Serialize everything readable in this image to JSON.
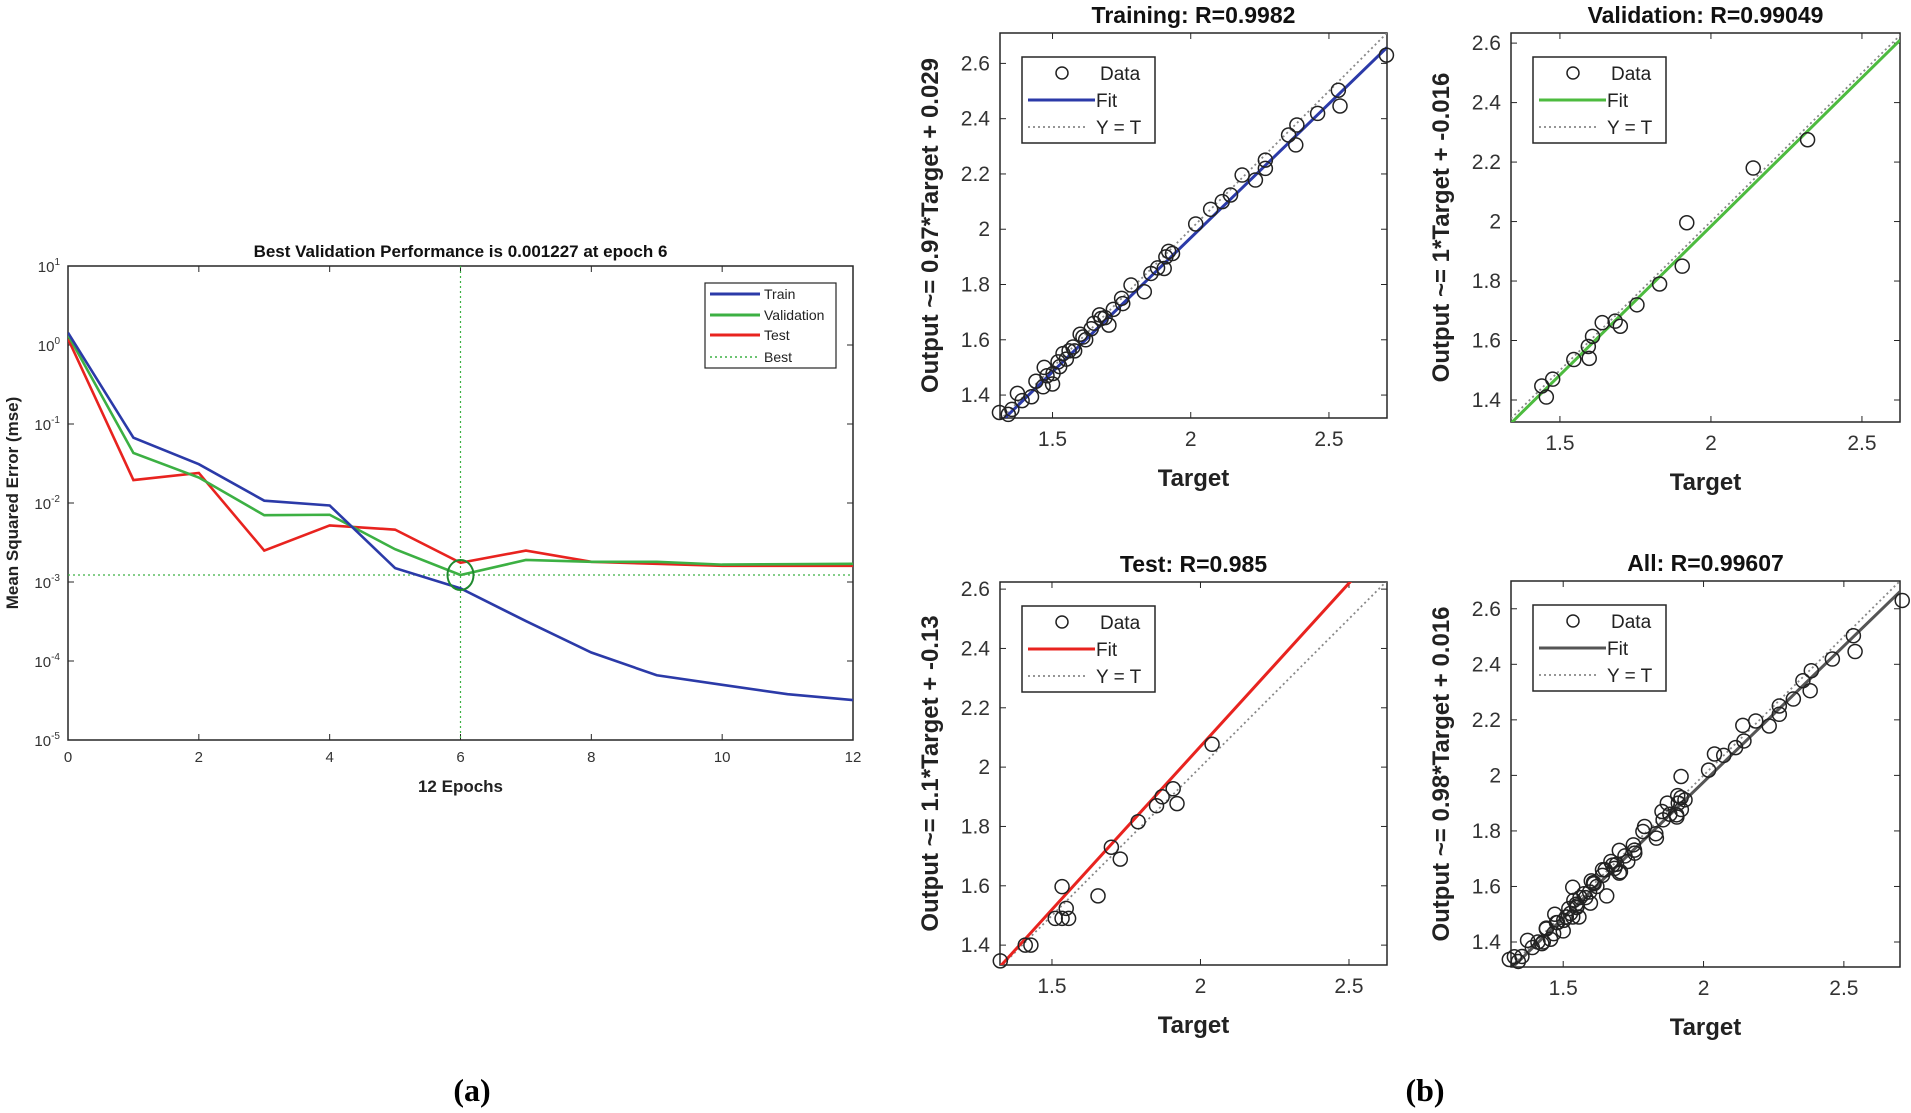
{
  "figure_labels": {
    "a": "(a)",
    "b": "(b)"
  },
  "chart_data": [
    {
      "type": "line",
      "title": "Best Validation Performance is 0.001227 at epoch 6",
      "xlabel": "12 Epochs",
      "ylabel": "Mean Squared Error  (mse)",
      "xlim": [
        0,
        12
      ],
      "ylim": [
        1e-05,
        10
      ],
      "yscale": "log",
      "xticks": [
        0,
        2,
        4,
        6,
        8,
        10,
        12
      ],
      "yticks": [
        1e-05,
        0.0001,
        0.001,
        0.01,
        0.1,
        1,
        10
      ],
      "ytick_labels": [
        "10^-5",
        "10^-4",
        "10^-3",
        "10^-2",
        "10^-1",
        "10^0",
        "10^1"
      ],
      "legend": "top-right",
      "x": [
        0,
        1,
        2,
        3,
        4,
        5,
        6,
        7,
        8,
        9,
        10,
        11,
        12
      ],
      "series": [
        {
          "name": "Train",
          "color": "#2b3aa8",
          "values": [
            1.43,
            0.067,
            0.031,
            0.0107,
            0.0093,
            0.0015,
            0.00083,
            0.00032,
            0.000128,
            6.6e-05,
            5e-05,
            3.8e-05,
            3.2e-05
          ]
        },
        {
          "name": "Validation",
          "color": "#3cb043",
          "values": [
            1.34,
            0.043,
            0.021,
            0.007,
            0.0071,
            0.0026,
            0.001227,
            0.0019,
            0.0018,
            0.0018,
            0.00166,
            0.00168,
            0.0017
          ]
        },
        {
          "name": "Test",
          "color": "#e8231f",
          "values": [
            1.2,
            0.0195,
            0.024,
            0.0025,
            0.0052,
            0.0046,
            0.00175,
            0.0025,
            0.0018,
            0.0017,
            0.0016,
            0.0016,
            0.0016
          ]
        }
      ],
      "best": {
        "name": "Best",
        "epoch": 6,
        "value": 0.001227,
        "color": "#3cb043"
      }
    },
    {
      "type": "scatter",
      "title": "Training: R=0.9982",
      "xlabel": "Target",
      "ylabel": "Output ~= 0.97*Target + 0.029",
      "xlim": [
        1.31,
        2.71
      ],
      "ylim": [
        1.317,
        2.71
      ],
      "xticks": [
        1.5,
        2,
        2.5
      ],
      "yticks": [
        1.4,
        1.6,
        1.8,
        2,
        2.2,
        2.4,
        2.6
      ],
      "legend": {
        "position": "top-left",
        "entries": [
          "Data",
          "Fit",
          "Y = T"
        ]
      },
      "fit": {
        "slope": 0.97,
        "intercept": 0.029,
        "color": "#2b3aa8"
      },
      "points": [
        [
          1.308,
          1.337
        ],
        [
          1.353,
          1.348
        ],
        [
          1.34,
          1.33
        ],
        [
          1.373,
          1.406
        ],
        [
          1.39,
          1.38
        ],
        [
          1.424,
          1.394
        ],
        [
          1.44,
          1.45
        ],
        [
          1.466,
          1.43
        ],
        [
          1.48,
          1.47
        ],
        [
          1.47,
          1.5
        ],
        [
          1.502,
          1.478
        ],
        [
          1.5,
          1.44
        ],
        [
          1.52,
          1.52
        ],
        [
          1.526,
          1.503
        ],
        [
          1.538,
          1.55
        ],
        [
          1.55,
          1.53
        ],
        [
          1.56,
          1.56
        ],
        [
          1.574,
          1.574
        ],
        [
          1.58,
          1.56
        ],
        [
          1.6,
          1.62
        ],
        [
          1.61,
          1.61
        ],
        [
          1.62,
          1.6
        ],
        [
          1.64,
          1.64
        ],
        [
          1.65,
          1.66
        ],
        [
          1.67,
          1.69
        ],
        [
          1.676,
          1.677
        ],
        [
          1.69,
          1.68
        ],
        [
          1.704,
          1.653
        ],
        [
          1.72,
          1.71
        ],
        [
          1.75,
          1.75
        ],
        [
          1.754,
          1.731
        ],
        [
          1.784,
          1.798
        ],
        [
          1.832,
          1.774
        ],
        [
          1.856,
          1.84
        ],
        [
          1.88,
          1.86
        ],
        [
          1.904,
          1.858
        ],
        [
          1.91,
          1.9
        ],
        [
          1.92,
          1.92
        ],
        [
          1.934,
          1.912
        ],
        [
          2.018,
          2.019
        ],
        [
          2.072,
          2.072
        ],
        [
          2.114,
          2.1
        ],
        [
          2.144,
          2.124
        ],
        [
          2.186,
          2.196
        ],
        [
          2.234,
          2.178
        ],
        [
          2.27,
          2.25
        ],
        [
          2.27,
          2.22
        ],
        [
          2.354,
          2.341
        ],
        [
          2.38,
          2.305
        ],
        [
          2.384,
          2.377
        ],
        [
          2.459,
          2.419
        ],
        [
          2.534,
          2.503
        ],
        [
          2.54,
          2.446
        ],
        [
          2.708,
          2.63
        ]
      ]
    },
    {
      "type": "scatter",
      "title": "Validation: R=0.99049",
      "xlabel": "Target",
      "ylabel": "Output ~= 1*Target + -0.016",
      "xlim": [
        1.338,
        2.626
      ],
      "ylim": [
        1.326,
        2.634
      ],
      "xticks": [
        1.5,
        2,
        2.5
      ],
      "yticks": [
        1.4,
        1.6,
        1.8,
        2,
        2.2,
        2.4,
        2.6
      ],
      "legend": {
        "position": "top-left",
        "entries": [
          "Data",
          "Fit",
          "Y = T"
        ]
      },
      "fit": {
        "slope": 1,
        "intercept": -0.016,
        "color": "#4dbb3f"
      },
      "points": [
        [
          1.44,
          1.447
        ],
        [
          1.455,
          1.41
        ],
        [
          1.476,
          1.47
        ],
        [
          1.546,
          1.536
        ],
        [
          1.597,
          1.54
        ],
        [
          1.594,
          1.58
        ],
        [
          1.608,
          1.614
        ],
        [
          1.64,
          1.66
        ],
        [
          1.683,
          1.665
        ],
        [
          1.7,
          1.648
        ],
        [
          1.755,
          1.72
        ],
        [
          1.83,
          1.79
        ],
        [
          1.905,
          1.85
        ],
        [
          1.92,
          1.996
        ],
        [
          2.14,
          2.18
        ],
        [
          2.32,
          2.275
        ]
      ]
    },
    {
      "type": "scatter",
      "title": "Test: R=0.985",
      "xlabel": "Target",
      "ylabel": "Output ~= 1.1*Target + -0.13",
      "xlim": [
        1.325,
        2.628
      ],
      "ylim": [
        1.333,
        2.624
      ],
      "xticks": [
        1.5,
        2,
        2.5
      ],
      "yticks": [
        1.4,
        1.6,
        1.8,
        2,
        2.2,
        2.4,
        2.6
      ],
      "legend": {
        "position": "top-left",
        "entries": [
          "Data",
          "Fit",
          "Y = T"
        ]
      },
      "fit": {
        "slope": 1.1,
        "intercept": -0.13,
        "color": "#e8231f"
      },
      "points": [
        [
          1.326,
          1.347
        ],
        [
          1.41,
          1.4
        ],
        [
          1.429,
          1.4
        ],
        [
          1.511,
          1.49
        ],
        [
          1.534,
          1.49
        ],
        [
          1.556,
          1.49
        ],
        [
          1.548,
          1.524
        ],
        [
          1.534,
          1.597
        ],
        [
          1.655,
          1.566
        ],
        [
          1.7,
          1.73
        ],
        [
          1.73,
          1.69
        ],
        [
          1.79,
          1.816
        ],
        [
          1.852,
          1.87
        ],
        [
          1.871,
          1.9
        ],
        [
          1.908,
          1.927
        ],
        [
          1.921,
          1.877
        ],
        [
          2.039,
          2.077
        ]
      ]
    },
    {
      "type": "scatter",
      "title": "All: R=0.99607",
      "xlabel": "Target",
      "ylabel": "Output ~= 0.98*Target + 0.016",
      "xlim": [
        1.314,
        2.7
      ],
      "ylim": [
        1.31,
        2.7
      ],
      "xticks": [
        1.5,
        2,
        2.5
      ],
      "yticks": [
        1.4,
        1.6,
        1.8,
        2,
        2.2,
        2.4,
        2.6
      ],
      "legend": {
        "position": "top-left",
        "entries": [
          "Data",
          "Fit",
          "Y = T"
        ]
      },
      "fit": {
        "slope": 0.98,
        "intercept": 0.016,
        "color": "#555555"
      },
      "points": [
        [
          1.308,
          1.337
        ],
        [
          1.353,
          1.348
        ],
        [
          1.34,
          1.33
        ],
        [
          1.373,
          1.406
        ],
        [
          1.39,
          1.38
        ],
        [
          1.424,
          1.394
        ],
        [
          1.44,
          1.45
        ],
        [
          1.466,
          1.43
        ],
        [
          1.48,
          1.47
        ],
        [
          1.47,
          1.5
        ],
        [
          1.502,
          1.478
        ],
        [
          1.5,
          1.44
        ],
        [
          1.52,
          1.52
        ],
        [
          1.526,
          1.503
        ],
        [
          1.538,
          1.55
        ],
        [
          1.55,
          1.53
        ],
        [
          1.56,
          1.56
        ],
        [
          1.574,
          1.574
        ],
        [
          1.58,
          1.56
        ],
        [
          1.6,
          1.62
        ],
        [
          1.61,
          1.61
        ],
        [
          1.62,
          1.6
        ],
        [
          1.64,
          1.64
        ],
        [
          1.65,
          1.66
        ],
        [
          1.67,
          1.69
        ],
        [
          1.676,
          1.677
        ],
        [
          1.69,
          1.68
        ],
        [
          1.704,
          1.653
        ],
        [
          1.72,
          1.71
        ],
        [
          1.75,
          1.75
        ],
        [
          1.754,
          1.731
        ],
        [
          1.784,
          1.798
        ],
        [
          1.832,
          1.774
        ],
        [
          1.856,
          1.84
        ],
        [
          1.88,
          1.86
        ],
        [
          1.904,
          1.858
        ],
        [
          1.91,
          1.9
        ],
        [
          1.92,
          1.92
        ],
        [
          1.934,
          1.912
        ],
        [
          2.018,
          2.019
        ],
        [
          2.072,
          2.072
        ],
        [
          2.114,
          2.1
        ],
        [
          2.144,
          2.124
        ],
        [
          2.186,
          2.196
        ],
        [
          2.234,
          2.178
        ],
        [
          2.27,
          2.25
        ],
        [
          2.27,
          2.22
        ],
        [
          2.354,
          2.341
        ],
        [
          2.38,
          2.305
        ],
        [
          2.384,
          2.377
        ],
        [
          2.459,
          2.419
        ],
        [
          2.534,
          2.503
        ],
        [
          2.54,
          2.446
        ],
        [
          2.708,
          2.63
        ],
        [
          1.44,
          1.447
        ],
        [
          1.455,
          1.41
        ],
        [
          1.476,
          1.47
        ],
        [
          1.546,
          1.536
        ],
        [
          1.597,
          1.54
        ],
        [
          1.594,
          1.58
        ],
        [
          1.608,
          1.614
        ],
        [
          1.64,
          1.66
        ],
        [
          1.683,
          1.665
        ],
        [
          1.7,
          1.648
        ],
        [
          1.755,
          1.72
        ],
        [
          1.83,
          1.79
        ],
        [
          1.905,
          1.85
        ],
        [
          1.92,
          1.996
        ],
        [
          2.14,
          2.18
        ],
        [
          2.32,
          2.275
        ],
        [
          1.326,
          1.347
        ],
        [
          1.41,
          1.4
        ],
        [
          1.429,
          1.4
        ],
        [
          1.511,
          1.49
        ],
        [
          1.534,
          1.49
        ],
        [
          1.556,
          1.49
        ],
        [
          1.548,
          1.524
        ],
        [
          1.534,
          1.597
        ],
        [
          1.655,
          1.566
        ],
        [
          1.7,
          1.73
        ],
        [
          1.73,
          1.69
        ],
        [
          1.79,
          1.816
        ],
        [
          1.852,
          1.87
        ],
        [
          1.871,
          1.9
        ],
        [
          1.908,
          1.927
        ],
        [
          1.921,
          1.877
        ],
        [
          2.039,
          2.077
        ]
      ]
    }
  ]
}
